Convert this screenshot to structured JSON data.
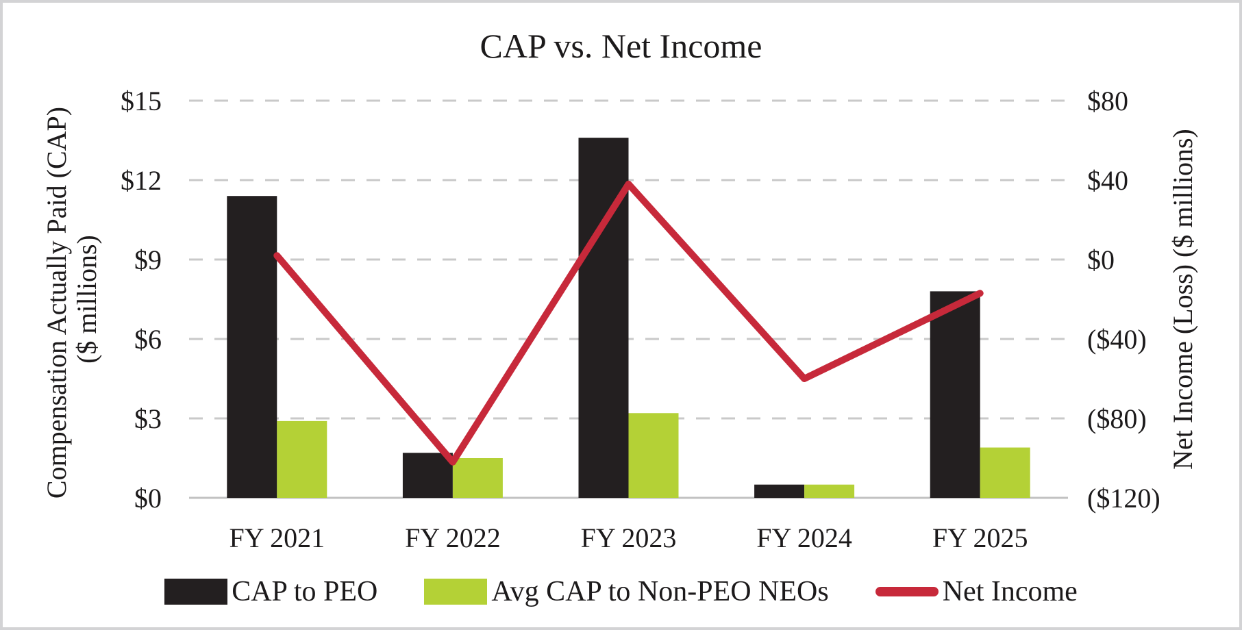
{
  "title": "CAP vs. Net Income",
  "chart_data": {
    "type": "bar+line combo",
    "title": "CAP vs. Net Income",
    "categories": [
      "FY 2021",
      "FY 2022",
      "FY 2023",
      "FY 2024",
      "FY 2025"
    ],
    "bar_series": [
      {
        "name": "CAP to PEO",
        "color": "#231f20",
        "axis": "left",
        "values": [
          11.4,
          1.7,
          13.6,
          0.5,
          7.8
        ]
      },
      {
        "name": "Avg CAP to Non-PEO NEOs",
        "color": "#b4d136",
        "axis": "left",
        "values": [
          2.9,
          1.5,
          3.2,
          0.5,
          1.9
        ]
      }
    ],
    "line_series": {
      "name": "Net Income",
      "color": "#c7293a",
      "axis": "right",
      "values": [
        2,
        -102,
        38,
        -60,
        -17
      ]
    },
    "left_axis": {
      "title_line1": "Compensation Actually Paid (CAP)",
      "title_line2": "($ millions)",
      "ticks": [
        "$15",
        "$12",
        "$9",
        "$6",
        "$3",
        "$0"
      ],
      "tick_values": [
        15,
        12,
        9,
        6,
        3,
        0
      ],
      "min": 0,
      "max": 15,
      "step": 3
    },
    "right_axis": {
      "title": "Net Income (Loss) ($ millions)",
      "ticks": [
        "$80",
        "$40",
        "$0",
        "($40)",
        "($80)",
        "($120)"
      ],
      "tick_values": [
        80,
        40,
        0,
        -40,
        -80,
        -120
      ],
      "min": -120,
      "max": 80,
      "step": 40
    },
    "grid": "horizontal dashed",
    "legend_position": "bottom"
  },
  "legend": {
    "items": [
      {
        "label": "CAP to PEO",
        "color": "#231f20",
        "marker": "rect"
      },
      {
        "label": "Avg CAP to Non-PEO NEOs",
        "color": "#b4d136",
        "marker": "rect"
      },
      {
        "label": "Net Income",
        "color": "#c7293a",
        "marker": "line"
      }
    ]
  },
  "colors": {
    "bar_peo": "#231f20",
    "bar_neo": "#b4d136",
    "net_income_line": "#c7293a",
    "gridline": "#c9c9c9",
    "baseline": "#c2c2c2",
    "text": "#1c1a1b",
    "frame_border": "#d3d3d5",
    "background": "#ffffff"
  }
}
